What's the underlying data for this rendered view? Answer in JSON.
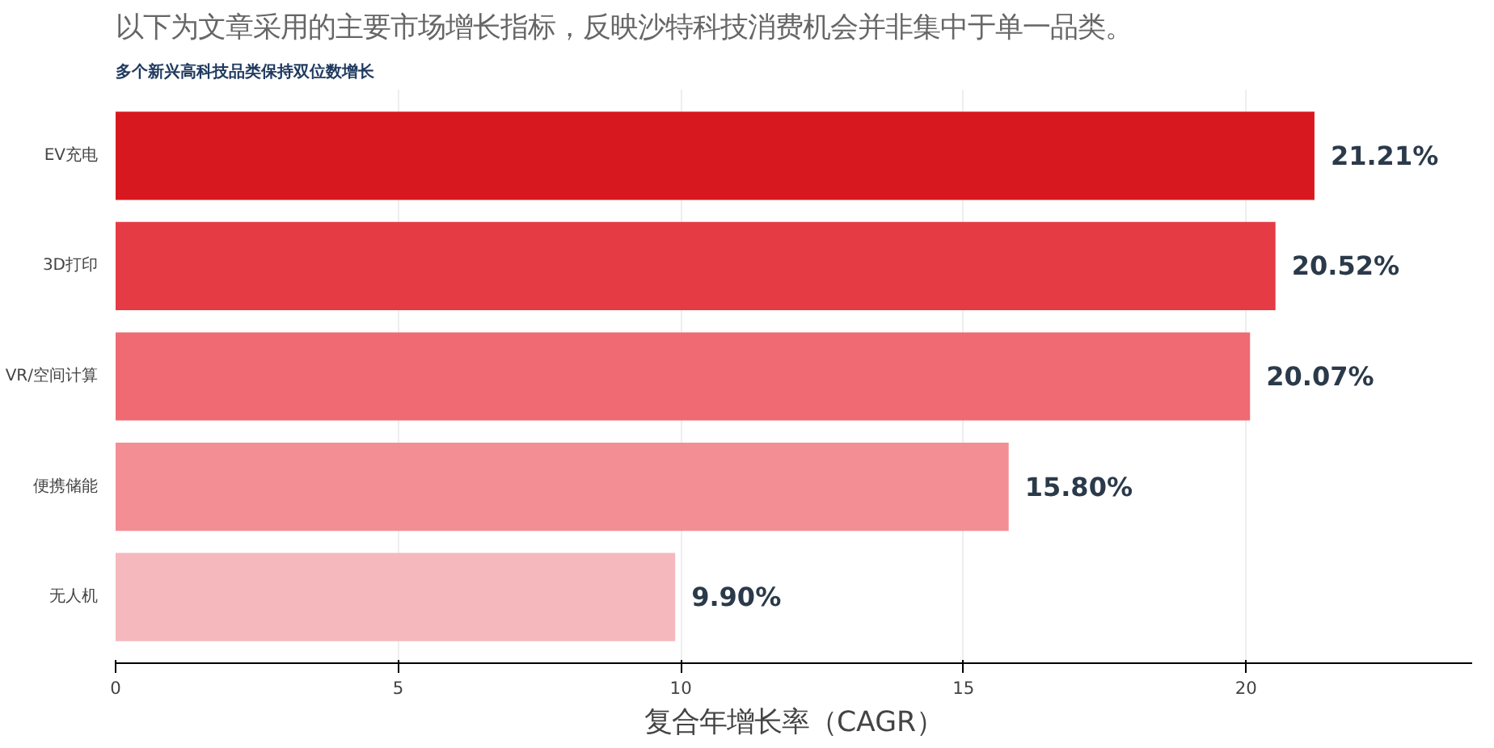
{
  "chart_data": {
    "type": "bar",
    "orientation": "horizontal",
    "title": "以下为文章采用的主要市场增长指标，反映沙特科技消费机会并非集中于单一品类。",
    "subtitle": "多个新兴高科技品类保持双位数增长",
    "xlabel": "复合年增长率（CAGR）",
    "categories": [
      "EV充电",
      "3D打印",
      "VR/空间计算",
      "便携储能",
      "无人机"
    ],
    "values": [
      21.21,
      20.52,
      20.07,
      15.8,
      9.9
    ],
    "colors": [
      "#d7191f",
      "#e53b45",
      "#ef6a72",
      "#f38f94",
      "#f5b8bc"
    ],
    "value_labels": [
      "21.21%",
      "20.52%",
      "20.07%",
      "15.80%",
      "9.90%"
    ],
    "xlim": [
      0,
      24
    ],
    "xticks": [
      0,
      5,
      10,
      15,
      20
    ],
    "grid": "x"
  }
}
